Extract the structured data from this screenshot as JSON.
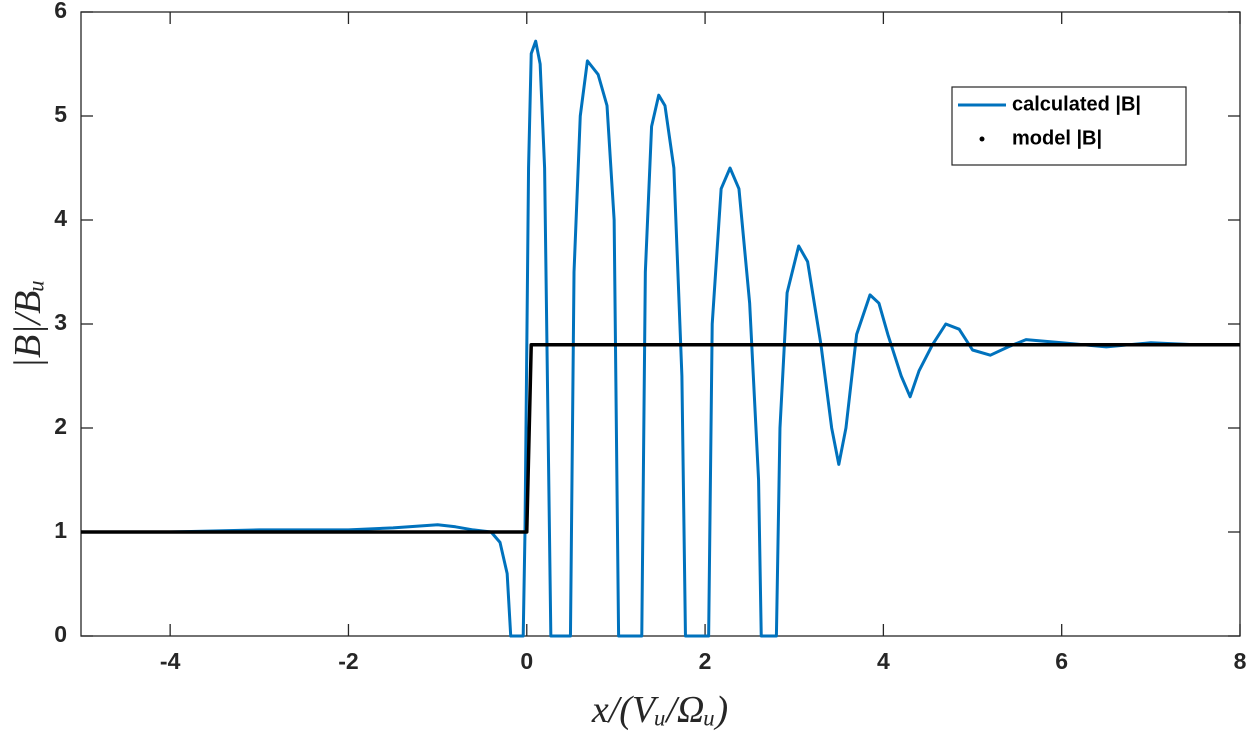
{
  "chart_data": {
    "type": "line",
    "x_label": "x/(Vᵤ/Ωᵤ)",
    "y_label": "|B|/Bᵤ",
    "xlim": [
      -5,
      8
    ],
    "xticks": [
      -4,
      -2,
      0,
      2,
      4,
      6,
      8
    ],
    "ylim": [
      0,
      6
    ],
    "yticks": [
      0,
      1,
      2,
      3,
      4,
      5,
      6
    ],
    "legend": "top-right",
    "series": [
      {
        "name": "calculated |B|",
        "color": "#0072bd",
        "style": "line",
        "x": [
          -5,
          -4,
          -3,
          -2,
          -1.5,
          -1,
          -0.8,
          -0.6,
          -0.4,
          -0.3,
          -0.22,
          -0.18,
          -0.04,
          -0.02,
          0.02,
          0.05,
          0.1,
          0.15,
          0.2,
          0.27,
          0.49,
          0.53,
          0.6,
          0.68,
          0.8,
          0.9,
          0.98,
          1.03,
          1.29,
          1.33,
          1.4,
          1.48,
          1.55,
          1.65,
          1.74,
          1.78,
          2.04,
          2.08,
          2.18,
          2.28,
          2.38,
          2.5,
          2.6,
          2.63,
          2.8,
          2.84,
          2.92,
          3.05,
          3.15,
          3.3,
          3.42,
          3.5,
          3.58,
          3.7,
          3.85,
          3.95,
          4.05,
          4.2,
          4.3,
          4.4,
          4.55,
          4.7,
          4.85,
          5.0,
          5.2,
          5.4,
          5.6,
          6,
          6.5,
          7,
          7.5,
          8
        ],
        "values": [
          1,
          1,
          1.02,
          1.02,
          1.04,
          1.07,
          1.05,
          1.02,
          1,
          0.9,
          0.6,
          0,
          0,
          1,
          4.5,
          5.6,
          5.72,
          5.5,
          4.5,
          0,
          0,
          3.5,
          5.0,
          5.53,
          5.4,
          5.1,
          4.0,
          0,
          0,
          3.5,
          4.9,
          5.2,
          5.1,
          4.5,
          2.5,
          0,
          0,
          3.0,
          4.3,
          4.5,
          4.3,
          3.2,
          1.5,
          0,
          0,
          2.0,
          3.3,
          3.75,
          3.6,
          2.8,
          2.0,
          1.65,
          2.0,
          2.9,
          3.28,
          3.2,
          2.9,
          2.5,
          2.3,
          2.55,
          2.8,
          3.0,
          2.95,
          2.75,
          2.7,
          2.78,
          2.85,
          2.82,
          2.78,
          2.82,
          2.8,
          2.8
        ]
      },
      {
        "name": "model |B|",
        "color": "#000000",
        "style": "dots",
        "x": [
          -5,
          0,
          0.05,
          8
        ],
        "values": [
          1,
          1,
          2.8,
          2.8
        ]
      }
    ]
  }
}
